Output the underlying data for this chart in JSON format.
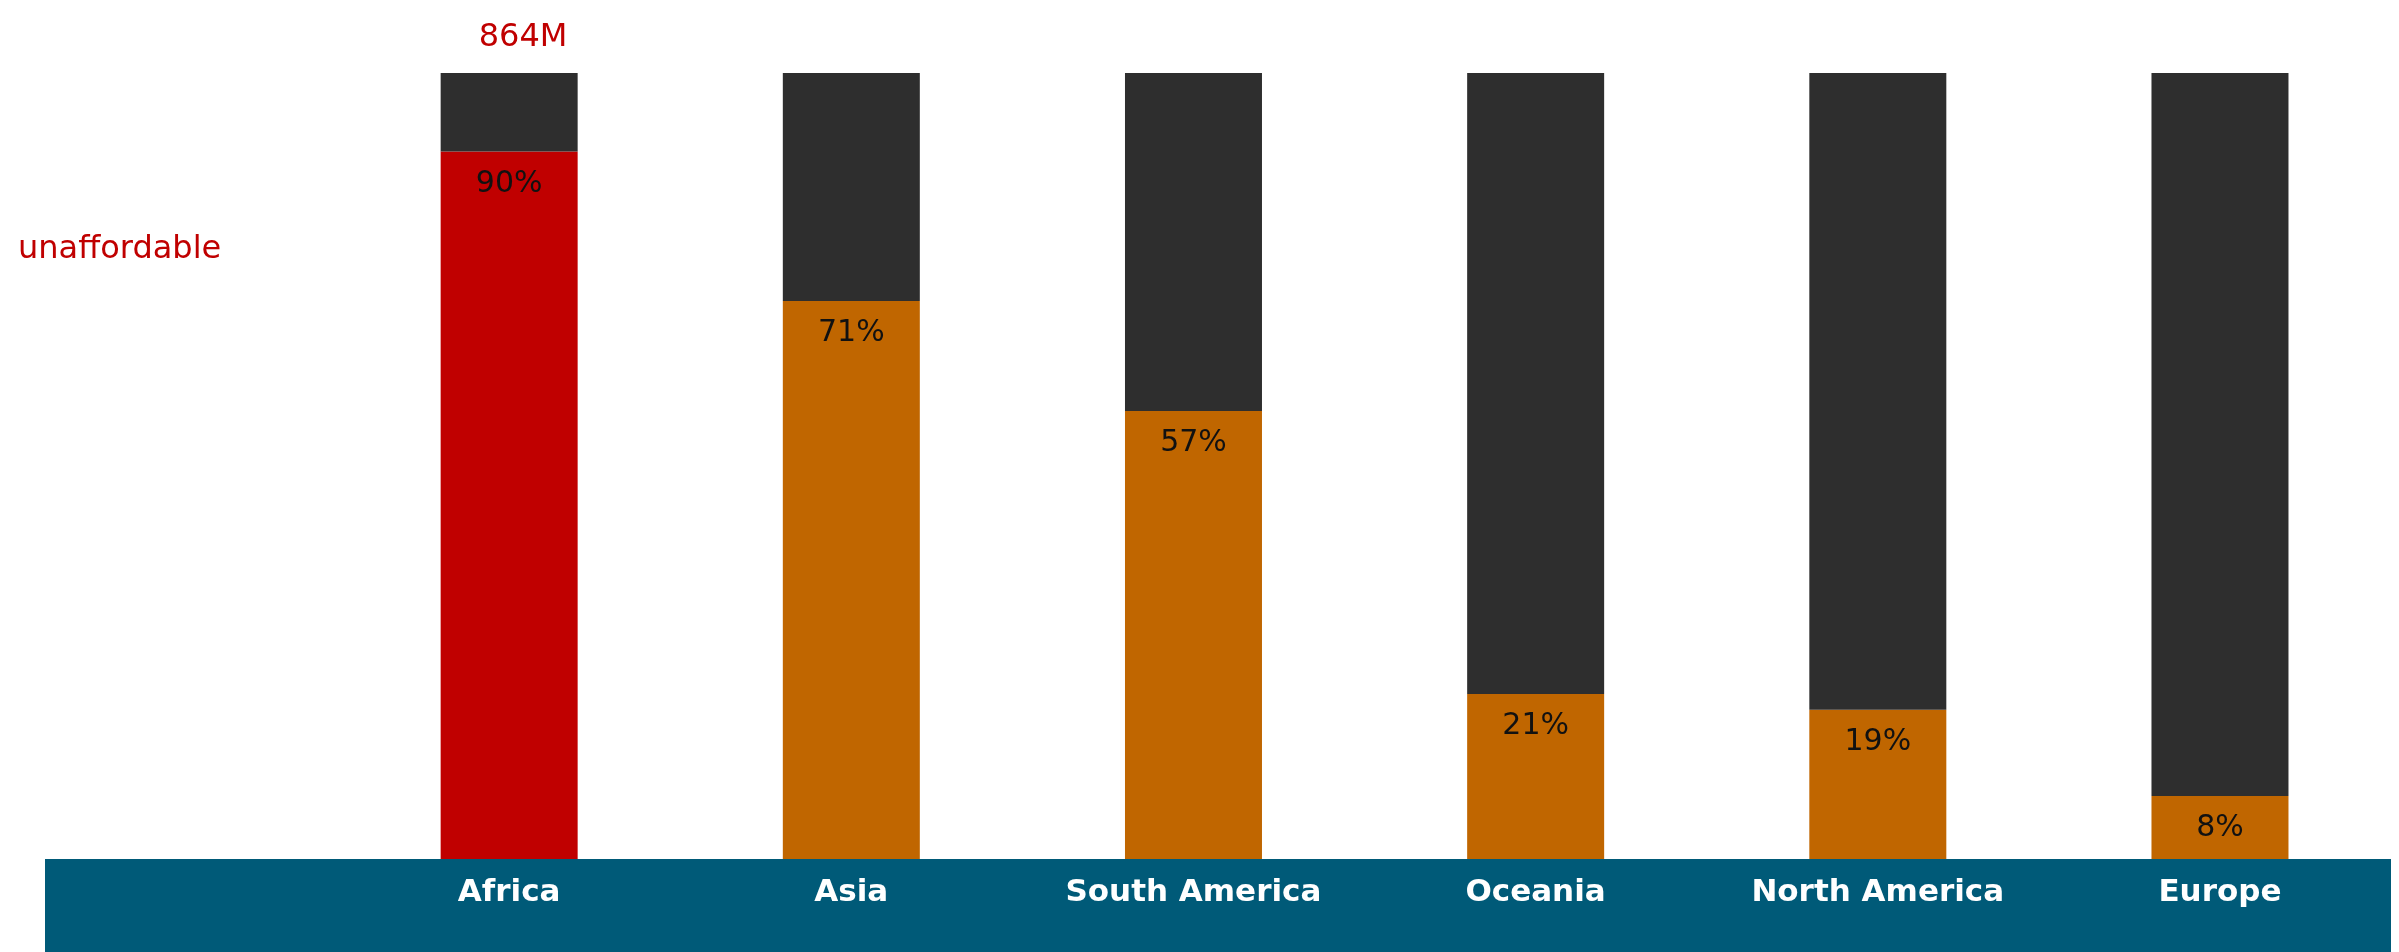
{
  "chart_data": {
    "type": "bar",
    "stacked": true,
    "categories": [
      "Africa",
      "Asia",
      "South America",
      "Oceania",
      "North America",
      "Europe"
    ],
    "series": [
      {
        "color": "#c06600",
        "colors": [
          "#c00000",
          "#c06600",
          "#c06600",
          "#c06600",
          "#c06600",
          "#c06600"
        ],
        "values": [
          90,
          71,
          57,
          21,
          19,
          8
        ],
        "value_labels": [
          "90%",
          "71%",
          "57%",
          "21%",
          "19%",
          "8%"
        ]
      },
      {
        "color": "#2e2e2e",
        "values": [
          10,
          29,
          43,
          79,
          81,
          92
        ]
      }
    ],
    "annotations": [
      "864M",
      "unaffordable"
    ]
  }
}
